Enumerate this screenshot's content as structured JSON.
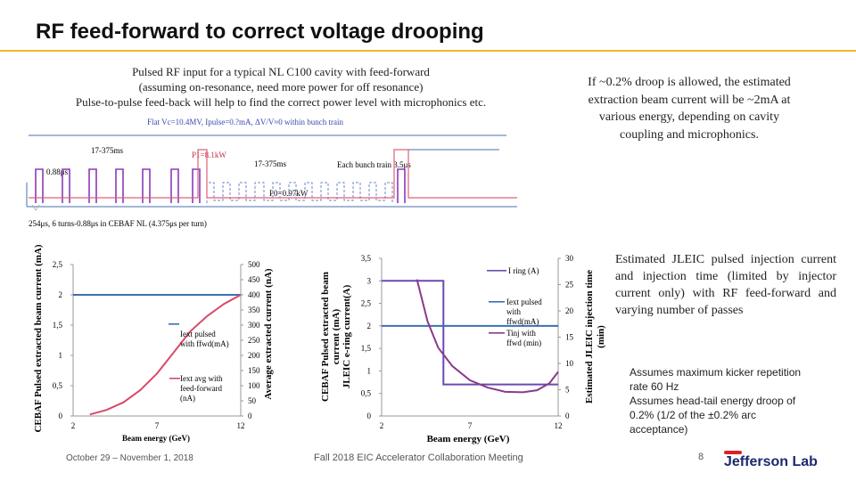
{
  "slide": {
    "title": "RF feed-forward to correct voltage drooping",
    "intro_lines": [
      "Pulsed RF input for a typical NL C100 cavity with feed-forward",
      "(assuming on-resonance, need more power for off resonance)",
      "Pulse-to-pulse feed-back will help to find the correct power level with microphonics etc."
    ],
    "droop_note": "If ~0.2% droop is allowed, the estimated extraction beam current will be ~2mA at various energy, depending on cavity coupling and microphonics.",
    "jleic_note": "Estimated JLEIC pulsed injection current and injection time (limited by injector current only) with RF feed-forward and varying number of passes",
    "kicker_lines": [
      "Assumes maximum kicker repetition",
      "rate 60 Hz",
      "Assumes head-tail energy droop of",
      "0.2% (1/2 of the ±0.2% arc",
      "acceptance)"
    ],
    "footer_date": "October 29 – November 1, 2018",
    "footer_conference": "Fall 2018 EIC Accelerator Collaboration Meeting",
    "page_number": "8",
    "logo_text": "Jefferson Lab"
  },
  "waveform": {
    "title": "Flat Vc=10.4MV, Ipulse=0.?mA, ΔV/V≈0 within bunch train",
    "label_rise_left": "17-375ms",
    "label_p1": "P1=8.1kW",
    "label_rise_right": "17-375ms",
    "label_train": "Each bunch train 3.5μs",
    "label_gap": "0.88μs",
    "label_p0": "P0=0.97kW",
    "label_bottom": "254μs, 6 turns-0.88μs in CEBAF NL (4.375μs per turn)",
    "colors": {
      "bunch": "#8a3ab9",
      "rf_power": "#e0607a",
      "trace": "#4a6fb0"
    }
  },
  "chart_data": [
    {
      "type": "line",
      "xlabel": "Beam energy (GeV)",
      "ylabel": "CEBAF Pulsed extracted beam current (mA)",
      "y2label": "Average extracted current (nA)",
      "x_ticks": [
        "2",
        "7",
        "12"
      ],
      "y_ticks": [
        "0",
        "0,5",
        "1",
        "1,5",
        "2",
        "2,5"
      ],
      "y2_ticks": [
        "0",
        "50",
        "100",
        "150",
        "200",
        "250",
        "300",
        "350",
        "400",
        "450",
        "500"
      ],
      "xlim": [
        2,
        12
      ],
      "ylim": [
        0,
        2.5
      ],
      "y2lim": [
        0,
        500
      ],
      "series": [
        {
          "name": "Iext pulsed with ffwd(mA)",
          "axis": "left",
          "color": "#3a6fb5",
          "x": [
            2,
            12
          ],
          "y": [
            2.0,
            2.0
          ]
        },
        {
          "name": "Iext avg with feed-forward (nA)",
          "axis": "right",
          "color": "#d94a6a",
          "x": [
            3,
            4,
            5,
            6,
            7,
            8,
            9,
            10,
            11,
            12
          ],
          "y": [
            5,
            20,
            45,
            85,
            140,
            210,
            280,
            330,
            370,
            400
          ]
        }
      ]
    },
    {
      "type": "line",
      "xlabel": "Beam energy (GeV)",
      "ylabel": "CEBAF Pulsed extracted beam current (mA) JLEIC e-ring current(A)",
      "y2label": "Estimated JLEIC injection time (min)",
      "x_ticks": [
        "2",
        "7",
        "12"
      ],
      "y_ticks": [
        "0",
        "0,5",
        "1",
        "1,5",
        "2",
        "2,5",
        "3",
        "3,5"
      ],
      "y2_ticks": [
        "0",
        "5",
        "10",
        "15",
        "20",
        "25",
        "30"
      ],
      "xlim": [
        2,
        12
      ],
      "ylim": [
        0,
        3.5
      ],
      "y2lim": [
        0,
        30
      ],
      "series": [
        {
          "name": "I ring (A)",
          "axis": "left",
          "color": "#6a4ab0",
          "x": [
            2,
            5.5,
            5.5,
            12
          ],
          "y": [
            3.0,
            3.0,
            0.7,
            0.7
          ]
        },
        {
          "name": "Iext pulsed with ffwd(mA)",
          "axis": "left",
          "color": "#3a6fb5",
          "x": [
            2,
            12
          ],
          "y": [
            2.0,
            2.0
          ]
        },
        {
          "name": "Tinj with ffwd (min)",
          "axis": "right",
          "color": "#8a3a8a",
          "x": [
            4,
            4.6,
            5.2,
            6,
            7,
            8,
            9,
            10,
            10.8,
            11.5,
            12
          ],
          "y": [
            26,
            18,
            13,
            9.5,
            6.8,
            5.4,
            4.6,
            4.5,
            4.9,
            6.2,
            8.4
          ]
        }
      ]
    }
  ]
}
